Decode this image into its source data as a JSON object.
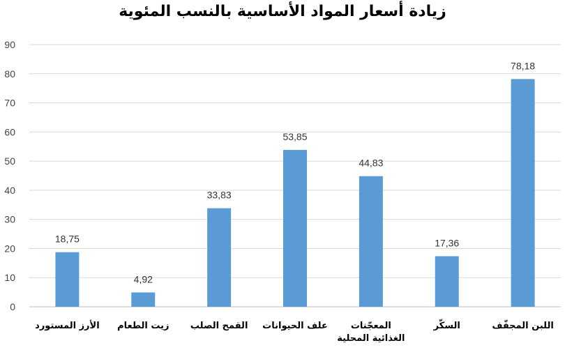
{
  "chart_data": {
    "type": "bar",
    "title": "زيادة أسعار المواد الأساسية بالنسب المئوية",
    "categories": [
      [
        "الأرز المستورد"
      ],
      [
        "زيت الطعام"
      ],
      [
        "القمح الصلب"
      ],
      [
        "علف الحيوانات"
      ],
      [
        "المعجّنات",
        "الغذائية المحلية"
      ],
      [
        "السكّر"
      ],
      [
        "اللبن المجفّف"
      ]
    ],
    "values": [
      18.75,
      4.92,
      33.83,
      53.85,
      44.83,
      17.36,
      78.18
    ],
    "value_labels": [
      "18,75",
      "4,92",
      "33,83",
      "53,85",
      "44,83",
      "17,36",
      "78,18"
    ],
    "ylim": [
      0,
      90
    ],
    "yticks": [
      0,
      10,
      20,
      30,
      40,
      50,
      60,
      70,
      80,
      90
    ],
    "grid": true,
    "legend": "none",
    "bar_color": "#5b9bd5",
    "grid_color": "#d9d9d9"
  }
}
